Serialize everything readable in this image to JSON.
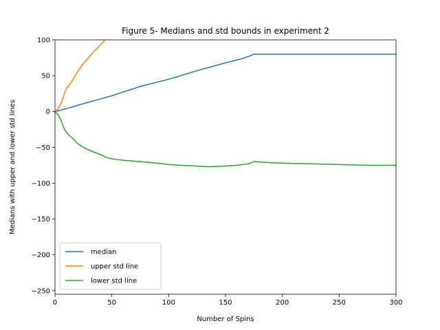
{
  "chart_data": {
    "type": "line",
    "title": "Figure 5- Medians and std bounds in experiment 2",
    "xlabel": "Number of Spins",
    "ylabel": "Medians with upper and lower std lines",
    "xlim": [
      0,
      300
    ],
    "ylim": [
      -255,
      100
    ],
    "xticks": [
      0,
      50,
      100,
      150,
      200,
      250,
      300
    ],
    "yticks": [
      100,
      50,
      0,
      -50,
      -100,
      -150,
      -200,
      -250
    ],
    "grid": false,
    "legend_position": "lower-left",
    "series": [
      {
        "name": "median",
        "color": "#1f77b4",
        "x": [
          0,
          10,
          25,
          50,
          75,
          100,
          125,
          150,
          165,
          172,
          175,
          200,
          250,
          300
        ],
        "y": [
          0,
          4,
          11,
          22,
          35,
          45,
          57,
          68,
          74,
          78,
          80,
          80,
          80,
          80
        ]
      },
      {
        "name": "upper std line",
        "color": "#ff7f0e",
        "x": [
          0,
          3,
          6,
          8,
          10,
          13,
          16,
          20,
          25,
          30,
          35,
          40,
          44
        ],
        "y": [
          0,
          4,
          14,
          24,
          32,
          38,
          45,
          56,
          67,
          76,
          85,
          93,
          100
        ]
      },
      {
        "name": "lower std line",
        "color": "#2ca02c",
        "x": [
          0,
          3,
          6,
          8,
          10,
          13,
          16,
          20,
          25,
          30,
          35,
          40,
          45,
          50,
          55,
          60,
          75,
          90,
          100,
          110,
          125,
          135,
          150,
          160,
          170,
          175,
          185,
          200,
          225,
          250,
          275,
          300
        ],
        "y": [
          0,
          -5,
          -15,
          -24,
          -29,
          -34,
          -38,
          -45,
          -50,
          -54,
          -57,
          -60,
          -64,
          -66,
          -67,
          -68,
          -70,
          -72,
          -74,
          -75,
          -76,
          -77,
          -76,
          -75,
          -73,
          -70,
          -71,
          -72,
          -73,
          -74,
          -75,
          -75
        ]
      }
    ]
  }
}
